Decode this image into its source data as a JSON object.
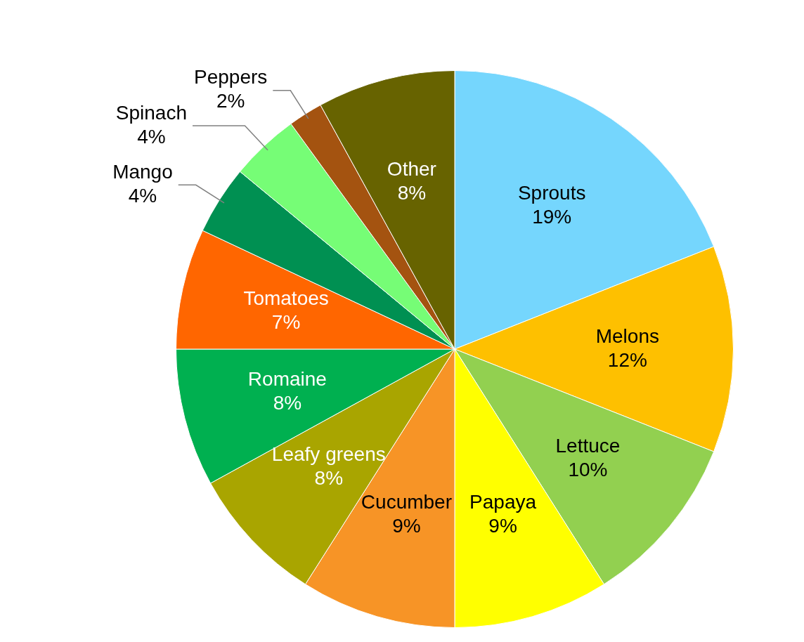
{
  "chart_data": {
    "type": "pie",
    "categories": [
      "Sprouts",
      "Melons",
      "Lettuce",
      "Papaya",
      "Cucumber",
      "Leafy greens",
      "Romaine",
      "Tomatoes",
      "Mango",
      "Spinach",
      "Peppers",
      "Other"
    ],
    "values": [
      19,
      12,
      10,
      9,
      9,
      8,
      8,
      7,
      4,
      4,
      2,
      8
    ],
    "colors": [
      "#75d6fd",
      "#fec000",
      "#92d050",
      "#ffff00",
      "#f79426",
      "#a9a500",
      "#00b050",
      "#ff6600",
      "#009052",
      "#76fd76",
      "#a45310",
      "#676300"
    ],
    "value_labels": [
      "19%",
      "12%",
      "10%",
      "9%",
      "9%",
      "8%",
      "8%",
      "7%",
      "4%",
      "4%",
      "2%",
      "8%"
    ],
    "legend": false
  }
}
